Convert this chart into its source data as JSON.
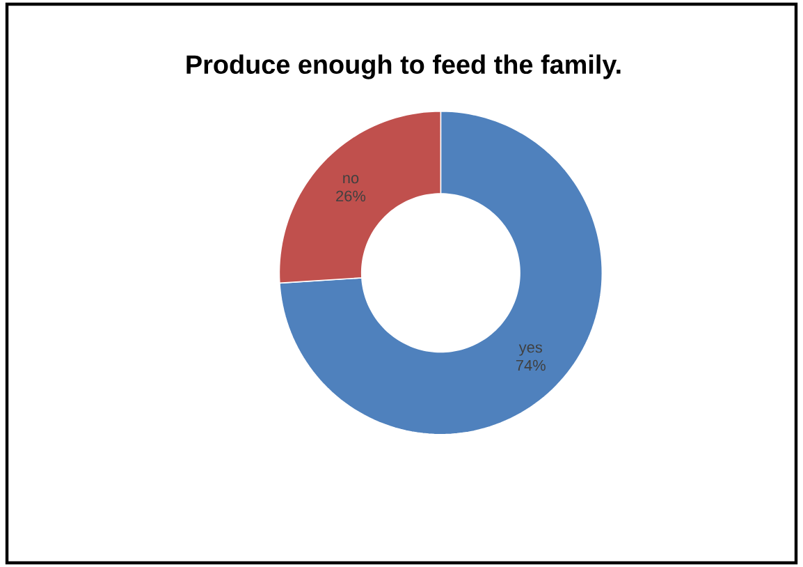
{
  "chart_data": {
    "type": "donut",
    "title": "Produce enough to feed the family.",
    "categories": [
      "yes",
      "no"
    ],
    "values": [
      74,
      26
    ],
    "colors": [
      "#4f81bd",
      "#c0504d"
    ],
    "value_labels": [
      "74%",
      "26%"
    ]
  }
}
